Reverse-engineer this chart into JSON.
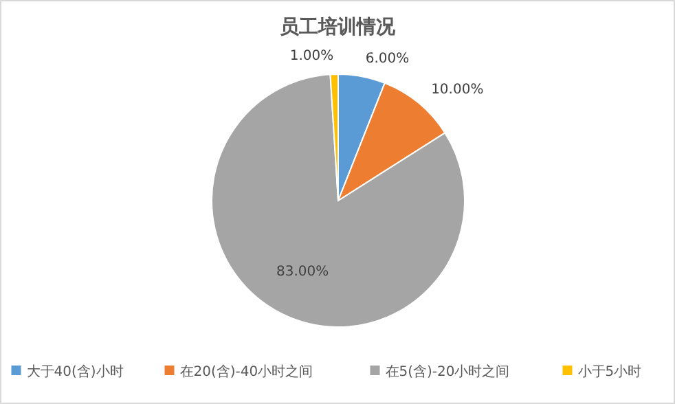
{
  "chart_data": {
    "type": "pie",
    "title": "员工培训情况",
    "categories": [
      "大于40(含)小时",
      "在20(含)-40小时之间",
      "在5(含)-20小时之间",
      "小于5小时"
    ],
    "values": [
      6,
      10,
      83,
      1
    ],
    "colors": [
      "#5b9bd5",
      "#ed7d31",
      "#a5a5a5",
      "#ffc000"
    ],
    "value_labels": [
      "6.00%",
      "10.00%",
      "83.00%",
      "1.00%"
    ],
    "legend": "bottom"
  }
}
